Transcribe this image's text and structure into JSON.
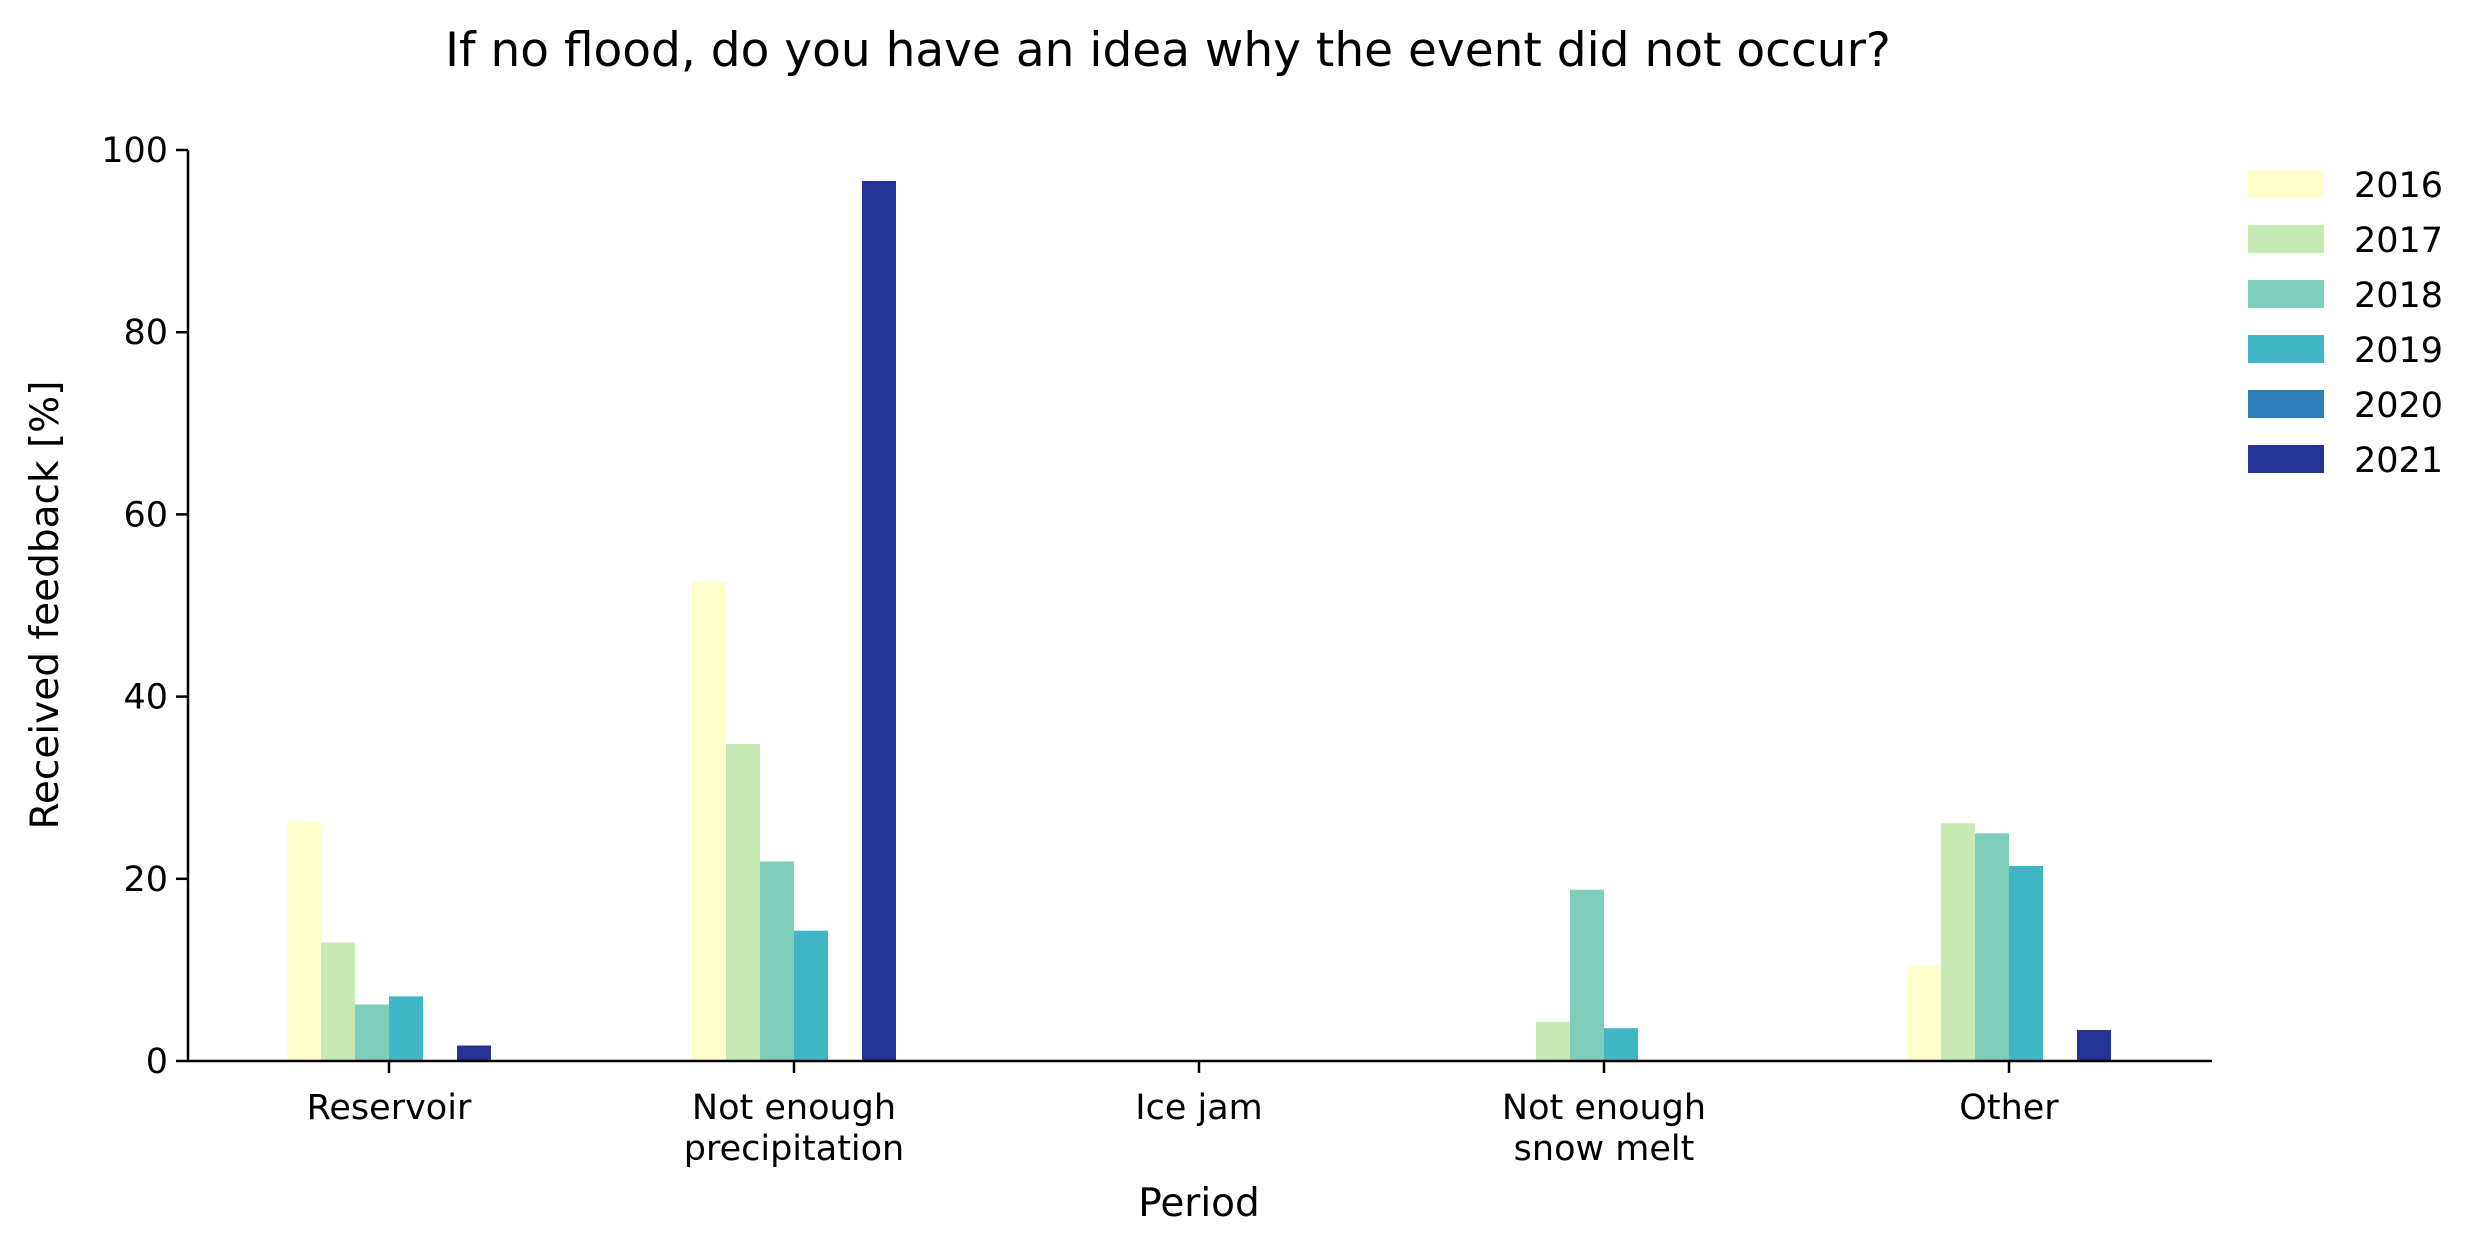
{
  "chart_data": {
    "type": "bar",
    "title": "If no flood, do you have an idea why the event did not occur?",
    "xlabel": "Period",
    "ylabel": "Received feedback [%]",
    "ylim": [
      0,
      100
    ],
    "yticks": [
      0,
      20,
      40,
      60,
      80,
      100
    ],
    "grid": false,
    "legend_position": "top-right, outside plot",
    "categories": [
      [
        "Reservoir"
      ],
      [
        "Not enough",
        "precipitation"
      ],
      [
        "Ice jam"
      ],
      [
        "Not enough",
        "snow melt"
      ],
      [
        "Other"
      ]
    ],
    "series": [
      {
        "name": "2016",
        "color": "#ffffcc",
        "values": [
          26.3,
          52.6,
          0,
          0,
          10.5
        ]
      },
      {
        "name": "2017",
        "color": "#c7e9b4",
        "values": [
          13.0,
          34.8,
          0,
          4.3,
          26.1
        ]
      },
      {
        "name": "2018",
        "color": "#7fcdbb",
        "values": [
          6.2,
          21.9,
          0,
          18.8,
          25.0
        ]
      },
      {
        "name": "2019",
        "color": "#41b6c4",
        "values": [
          7.1,
          14.3,
          0,
          3.6,
          21.4
        ]
      },
      {
        "name": "2020",
        "color": "#2c7fb8",
        "values": [
          0,
          0,
          0,
          0,
          0
        ]
      },
      {
        "name": "2021",
        "color": "#253494",
        "values": [
          1.7,
          96.6,
          0,
          0,
          3.4
        ]
      }
    ]
  }
}
